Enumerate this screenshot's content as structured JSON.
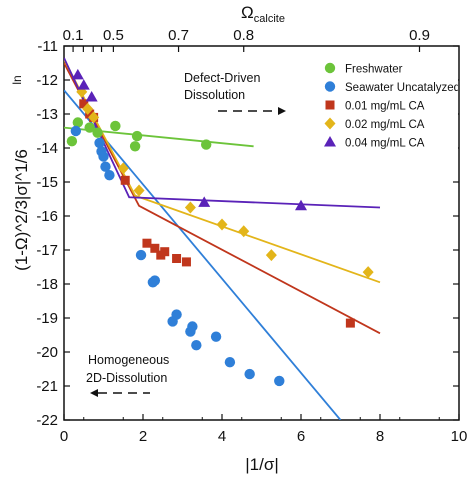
{
  "chart_data": {
    "type": "scatter",
    "title": "",
    "xlabel": "|1/σ|",
    "ylabel": "(1-Ω)^2/3|σ|^1/6",
    "ylabel_prefix": "ln",
    "top_axis_label_main": "Ω",
    "top_axis_label_sub": "calcite",
    "xlim": [
      0,
      10
    ],
    "ylim": [
      -22,
      -11
    ],
    "x_ticks": [
      0,
      2,
      4,
      6,
      8,
      10
    ],
    "y_ticks": [
      -11,
      -12,
      -13,
      -14,
      -15,
      -16,
      -17,
      -18,
      -19,
      -20,
      -21,
      -22
    ],
    "top_ticks": [
      {
        "label": "0.1",
        "x": 0.23
      },
      {
        "label": "",
        "x": 0.49
      },
      {
        "label": "",
        "x": 0.74
      },
      {
        "label": "",
        "x": 0.95
      },
      {
        "label": "0.5",
        "x": 1.25
      },
      {
        "label": "0.7",
        "x": 2.9
      },
      {
        "label": "0.8",
        "x": 4.55
      },
      {
        "label": "0.9",
        "x": 9.0
      }
    ],
    "grid": false,
    "legend_position": "top-right",
    "annotations": {
      "defect": [
        "Defect-Driven",
        "Dissolution"
      ],
      "homogeneous": [
        "Homogeneous",
        "2D-Dissolution"
      ]
    },
    "series": [
      {
        "name": "Freshwater",
        "marker": "circle",
        "color": "#6cc43a",
        "points": [
          [
            0.2,
            -13.8
          ],
          [
            0.35,
            -13.25
          ],
          [
            0.65,
            -13.4
          ],
          [
            0.85,
            -13.55
          ],
          [
            1.3,
            -13.35
          ],
          [
            1.8,
            -13.95
          ],
          [
            1.85,
            -13.65
          ],
          [
            3.6,
            -13.9
          ]
        ],
        "fit": [
          [
            0.0,
            -13.4
          ],
          [
            4.8,
            -13.95
          ]
        ]
      },
      {
        "name": "Seawater Uncatalyzed",
        "marker": "circle",
        "color": "#2f7fd8",
        "points": [
          [
            0.3,
            -13.5
          ],
          [
            0.9,
            -13.85
          ],
          [
            0.95,
            -14.1
          ],
          [
            1.0,
            -14.25
          ],
          [
            1.05,
            -14.55
          ],
          [
            1.15,
            -14.8
          ],
          [
            1.95,
            -17.15
          ],
          [
            2.25,
            -17.95
          ],
          [
            2.3,
            -17.9
          ],
          [
            2.75,
            -19.1
          ],
          [
            2.85,
            -18.9
          ],
          [
            3.2,
            -19.4
          ],
          [
            3.25,
            -19.25
          ],
          [
            3.35,
            -19.8
          ],
          [
            3.85,
            -19.55
          ],
          [
            4.2,
            -20.3
          ],
          [
            4.7,
            -20.65
          ],
          [
            5.45,
            -20.85
          ]
        ],
        "fit": [
          [
            0.0,
            -12.3
          ],
          [
            7.0,
            -22.0
          ]
        ]
      },
      {
        "name": "0.01 mg/mL CA",
        "marker": "square",
        "color": "#c0361c",
        "points": [
          [
            0.5,
            -12.7
          ],
          [
            0.65,
            -13.0
          ],
          [
            0.75,
            -13.1
          ],
          [
            1.55,
            -14.95
          ],
          [
            2.1,
            -16.8
          ],
          [
            2.3,
            -16.95
          ],
          [
            2.45,
            -17.15
          ],
          [
            2.55,
            -17.05
          ],
          [
            2.85,
            -17.25
          ],
          [
            3.1,
            -17.35
          ],
          [
            7.25,
            -19.15
          ]
        ],
        "fit": [
          [
            0.0,
            -11.5
          ],
          [
            1.9,
            -15.7
          ],
          [
            8.0,
            -19.45
          ]
        ]
      },
      {
        "name": "0.02 mg/mL CA",
        "marker": "diamond",
        "color": "#e3b51a",
        "points": [
          [
            0.45,
            -12.35
          ],
          [
            0.6,
            -12.85
          ],
          [
            0.75,
            -13.1
          ],
          [
            1.5,
            -14.6
          ],
          [
            1.9,
            -15.25
          ],
          [
            3.2,
            -15.75
          ],
          [
            4.0,
            -16.25
          ],
          [
            4.55,
            -16.45
          ],
          [
            5.25,
            -17.15
          ],
          [
            7.7,
            -17.65
          ]
        ],
        "fit": [
          [
            0.0,
            -11.4
          ],
          [
            1.8,
            -15.4
          ],
          [
            8.0,
            -17.95
          ]
        ]
      },
      {
        "name": "0.04 mg/mL CA",
        "marker": "triangle",
        "color": "#5a22b8",
        "points": [
          [
            0.35,
            -11.85
          ],
          [
            0.5,
            -12.15
          ],
          [
            0.7,
            -12.5
          ],
          [
            3.55,
            -15.6
          ],
          [
            6.0,
            -15.7
          ]
        ],
        "fit": [
          [
            0.0,
            -11.35
          ],
          [
            1.65,
            -15.45
          ],
          [
            8.0,
            -15.75
          ]
        ]
      }
    ]
  }
}
